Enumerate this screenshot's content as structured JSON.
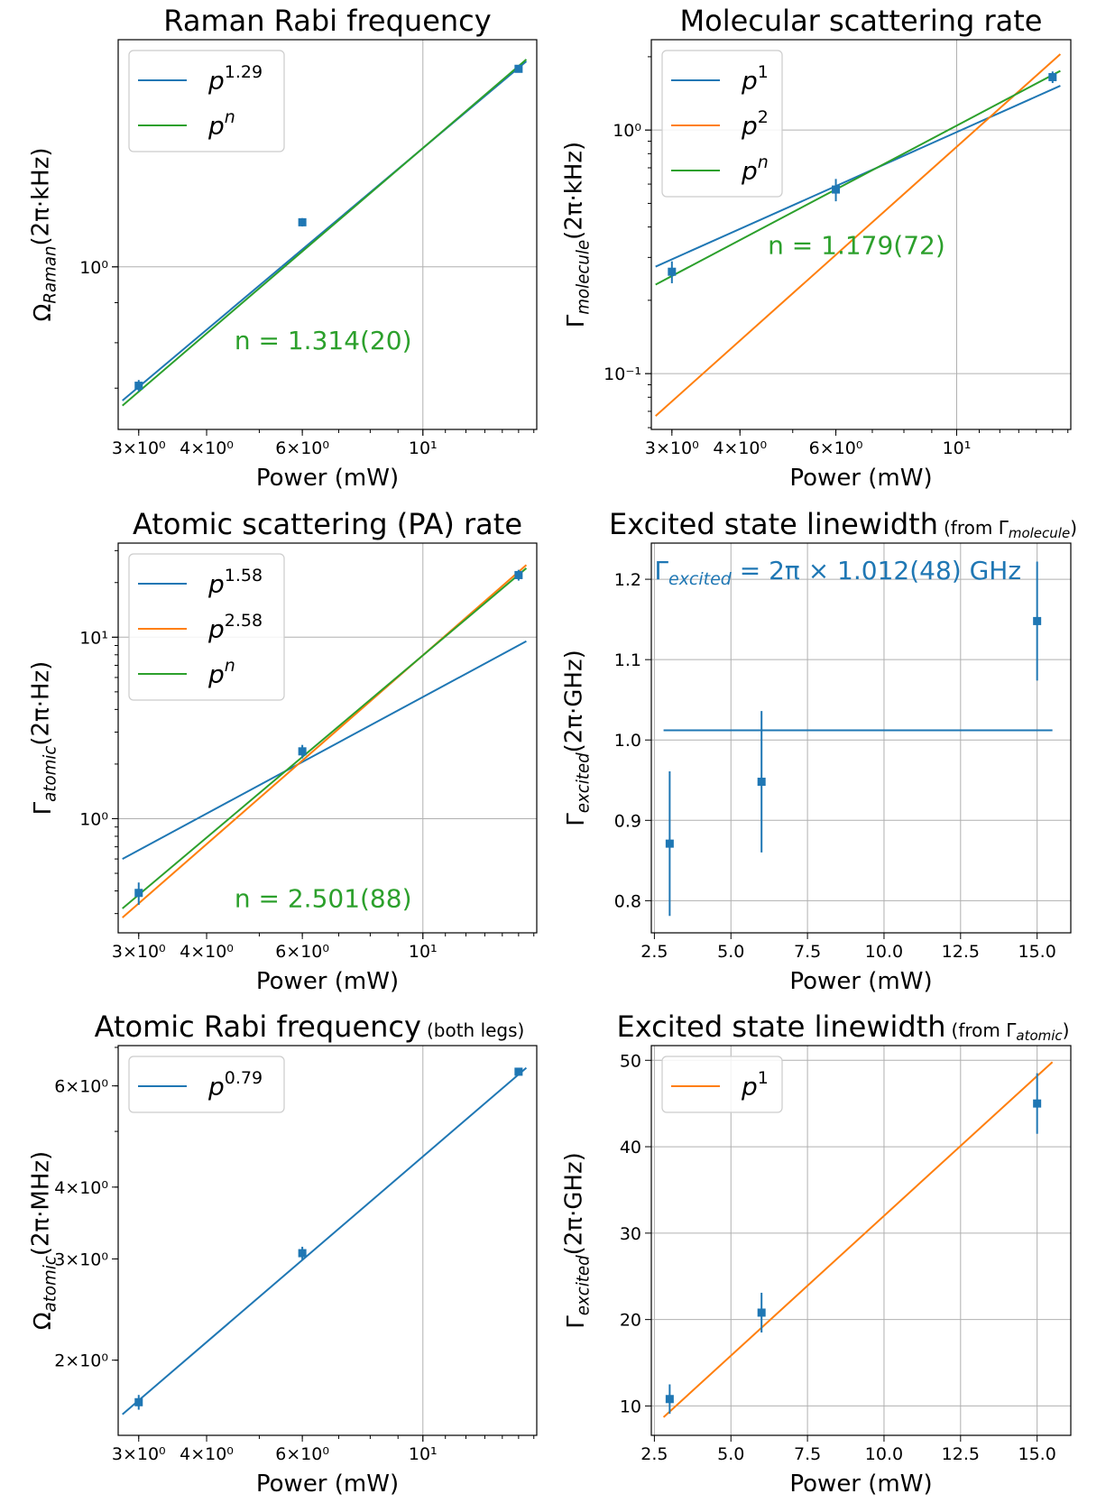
{
  "colors": {
    "blue": "#1f77b4",
    "orange": "#ff7f0e",
    "green": "#2ca02c",
    "grid": "#b0b0b0"
  },
  "chart_data": [
    {
      "id": "raman",
      "type": "scatter",
      "title": "Raman Rabi frequency",
      "title_sub": "",
      "xlabel": "Power (mW)",
      "ylabel": "Ω_Raman(2π·kHz)",
      "xscale": "log",
      "yscale": "log",
      "xlim": [
        2.75,
        16.2
      ],
      "ylim": [
        0.62,
        1.95
      ],
      "xticks": [
        {
          "v": 3,
          "label": "3×10⁰"
        },
        {
          "v": 4,
          "label": "4×10⁰"
        },
        {
          "v": 6,
          "label": "6×10⁰"
        },
        {
          "v": 10,
          "label": "10¹"
        }
      ],
      "yticks": [
        {
          "v": 1,
          "label": "10⁰"
        }
      ],
      "grid": true,
      "points": [
        {
          "x": 3,
          "y": 0.705,
          "yerr": 0.012
        },
        {
          "x": 6,
          "y": 1.14,
          "yerr": 0.014
        },
        {
          "x": 15,
          "y": 1.79,
          "yerr": 0.02
        }
      ],
      "lines": [
        {
          "name": "p^1.29",
          "color": "blue",
          "x": [
            2.8,
            15.5
          ],
          "y": [
            0.675,
            1.83
          ]
        },
        {
          "name": "p^n",
          "color": "green",
          "x": [
            2.8,
            15.5
          ],
          "y": [
            0.665,
            1.84
          ]
        }
      ],
      "legend": [
        {
          "base": "p",
          "sup": "1.29",
          "color": "blue"
        },
        {
          "base": "p",
          "sup": "n",
          "color": "green"
        }
      ],
      "legend_position": "top-left",
      "annotation": {
        "text": "n = 1.314(20)",
        "color": "green",
        "x": 4.5,
        "y": 0.785
      }
    },
    {
      "id": "molecule",
      "type": "scatter",
      "title": "Molecular scattering rate",
      "title_sub": "",
      "xlabel": "Power (mW)",
      "ylabel": "Γ_molecule(2π·kHz)",
      "xscale": "log",
      "yscale": "log",
      "xlim": [
        2.75,
        16.2
      ],
      "ylim": [
        0.059,
        2.35
      ],
      "xticks": [
        {
          "v": 3,
          "label": "3×10⁰"
        },
        {
          "v": 4,
          "label": "4×10⁰"
        },
        {
          "v": 6,
          "label": "6×10⁰"
        },
        {
          "v": 10,
          "label": "10¹"
        }
      ],
      "yticks": [
        {
          "v": 0.1,
          "label": "10⁻¹"
        },
        {
          "v": 1,
          "label": "10⁰"
        }
      ],
      "grid": true,
      "points": [
        {
          "x": 3,
          "y": 0.262,
          "yerr": 0.027
        },
        {
          "x": 6,
          "y": 0.57,
          "yerr": 0.06
        },
        {
          "x": 15,
          "y": 1.65,
          "yerr": 0.09
        }
      ],
      "lines": [
        {
          "name": "p^1",
          "color": "blue",
          "x": [
            2.8,
            15.5
          ],
          "y": [
            0.275,
            1.52
          ]
        },
        {
          "name": "p^2",
          "color": "orange",
          "x": [
            2.8,
            15.5
          ],
          "y": [
            0.067,
            2.05
          ]
        },
        {
          "name": "p^n",
          "color": "green",
          "x": [
            2.8,
            15.5
          ],
          "y": [
            0.232,
            1.75
          ]
        }
      ],
      "legend": [
        {
          "base": "p",
          "sup": "1",
          "color": "blue"
        },
        {
          "base": "p",
          "sup": "2",
          "color": "orange"
        },
        {
          "base": "p",
          "sup": "n",
          "color": "green"
        }
      ],
      "legend_position": "top-left",
      "annotation": {
        "text": "n = 1.179(72)",
        "color": "green",
        "x": 4.5,
        "y": 0.31
      }
    },
    {
      "id": "atomic",
      "type": "scatter",
      "title": "Atomic scattering (PA) rate",
      "title_sub": "",
      "xlabel": "Power (mW)",
      "ylabel": "Γ_atomic(2π·Hz)",
      "xscale": "log",
      "yscale": "log",
      "xlim": [
        2.75,
        16.2
      ],
      "ylim": [
        0.235,
        33
      ],
      "xticks": [
        {
          "v": 3,
          "label": "3×10⁰"
        },
        {
          "v": 4,
          "label": "4×10⁰"
        },
        {
          "v": 6,
          "label": "6×10⁰"
        },
        {
          "v": 10,
          "label": "10¹"
        }
      ],
      "yticks": [
        {
          "v": 1,
          "label": "10⁰"
        },
        {
          "v": 10,
          "label": "10¹"
        }
      ],
      "grid": true,
      "points": [
        {
          "x": 3,
          "y": 0.39,
          "yerr": 0.055
        },
        {
          "x": 6,
          "y": 2.35,
          "yerr": 0.2
        },
        {
          "x": 15,
          "y": 22,
          "yerr": 1.5
        }
      ],
      "lines": [
        {
          "name": "p^1.58",
          "color": "blue",
          "x": [
            2.8,
            15.5
          ],
          "y": [
            0.6,
            9.5
          ]
        },
        {
          "name": "p^2.58",
          "color": "orange",
          "x": [
            2.8,
            15.5
          ],
          "y": [
            0.285,
            25
          ]
        },
        {
          "name": "p^n",
          "color": "green",
          "x": [
            2.8,
            15.5
          ],
          "y": [
            0.32,
            24
          ]
        }
      ],
      "legend": [
        {
          "base": "p",
          "sup": "1.58",
          "color": "blue"
        },
        {
          "base": "p",
          "sup": "2.58",
          "color": "orange"
        },
        {
          "base": "p",
          "sup": "n",
          "color": "green"
        }
      ],
      "legend_position": "top-left",
      "annotation": {
        "text": "n = 2.501(88)",
        "color": "green",
        "x": 4.5,
        "y": 0.325
      }
    },
    {
      "id": "linewidth_molecule",
      "type": "scatter",
      "title": "Excited state linewidth",
      "title_sub": "(from Γ_molecule)",
      "xlabel": "Power (mW)",
      "ylabel": "Γ_excited(2π·GHz)",
      "xscale": "linear",
      "yscale": "linear",
      "xlim": [
        2.4,
        16.1
      ],
      "ylim": [
        0.76,
        1.245
      ],
      "xticks": [
        {
          "v": 2.5,
          "label": "2.5"
        },
        {
          "v": 5,
          "label": "5.0"
        },
        {
          "v": 7.5,
          "label": "7.5"
        },
        {
          "v": 10,
          "label": "10.0"
        },
        {
          "v": 12.5,
          "label": "12.5"
        },
        {
          "v": 15,
          "label": "15.0"
        }
      ],
      "yticks": [
        {
          "v": 0.8,
          "label": "0.8"
        },
        {
          "v": 0.9,
          "label": "0.9"
        },
        {
          "v": 1.0,
          "label": "1.0"
        },
        {
          "v": 1.1,
          "label": "1.1"
        },
        {
          "v": 1.2,
          "label": "1.2"
        }
      ],
      "grid": true,
      "points": [
        {
          "x": 3,
          "y": 0.871,
          "yerr": 0.09
        },
        {
          "x": 6,
          "y": 0.948,
          "yerr": 0.088
        },
        {
          "x": 15,
          "y": 1.148,
          "yerr": 0.074
        }
      ],
      "lines": [
        {
          "name": "",
          "color": "blue",
          "x": [
            2.8,
            15.5
          ],
          "y": [
            1.012,
            1.012
          ]
        }
      ],
      "legend": [],
      "legend_position": "",
      "annotation": {
        "text": "Γexcited = 2π × 1.012(48) GHz",
        "color": "blue",
        "x": 2.5,
        "y": 1.2
      }
    },
    {
      "id": "atomic_rabi",
      "type": "scatter",
      "title": "Atomic Rabi frequency",
      "title_sub": "(both legs)",
      "xlabel": "Power (mW)",
      "ylabel": "Ω_atomic(2π·MHz)",
      "xscale": "log",
      "yscale": "log",
      "xlim": [
        2.75,
        16.2
      ],
      "ylim": [
        1.48,
        7.05
      ],
      "xticks": [
        {
          "v": 3,
          "label": "3×10⁰"
        },
        {
          "v": 4,
          "label": "4×10⁰"
        },
        {
          "v": 6,
          "label": "6×10⁰"
        },
        {
          "v": 10,
          "label": "10¹"
        }
      ],
      "yticks": [
        {
          "v": 2,
          "label": "2×10⁰"
        },
        {
          "v": 3,
          "label": "3×10⁰"
        },
        {
          "v": 4,
          "label": "4×10⁰"
        },
        {
          "v": 6,
          "label": "6×10⁰"
        }
      ],
      "grid": true,
      "points": [
        {
          "x": 3,
          "y": 1.69,
          "yerr": 0.05
        },
        {
          "x": 6,
          "y": 3.07,
          "yerr": 0.08
        },
        {
          "x": 15,
          "y": 6.35,
          "yerr": 0.1
        }
      ],
      "lines": [
        {
          "name": "p^0.79",
          "color": "blue",
          "x": [
            2.8,
            15.5
          ],
          "y": [
            1.61,
            6.45
          ]
        }
      ],
      "legend": [
        {
          "base": "p",
          "sup": "0.79",
          "color": "blue"
        }
      ],
      "legend_position": "top-left",
      "annotation": null
    },
    {
      "id": "linewidth_atomic",
      "type": "scatter",
      "title": "Excited state linewidth",
      "title_sub": "(from Γ_atomic)",
      "xlabel": "Power (mW)",
      "ylabel": "Γ_excited(2π·GHz)",
      "xscale": "linear",
      "yscale": "linear",
      "xlim": [
        2.4,
        16.1
      ],
      "ylim": [
        6.6,
        51.7
      ],
      "xticks": [
        {
          "v": 2.5,
          "label": "2.5"
        },
        {
          "v": 5,
          "label": "5.0"
        },
        {
          "v": 7.5,
          "label": "7.5"
        },
        {
          "v": 10,
          "label": "10.0"
        },
        {
          "v": 12.5,
          "label": "12.5"
        },
        {
          "v": 15,
          "label": "15.0"
        }
      ],
      "yticks": [
        {
          "v": 10,
          "label": "10"
        },
        {
          "v": 20,
          "label": "20"
        },
        {
          "v": 30,
          "label": "30"
        },
        {
          "v": 40,
          "label": "40"
        },
        {
          "v": 50,
          "label": "50"
        }
      ],
      "grid": true,
      "points": [
        {
          "x": 3,
          "y": 10.8,
          "yerr": 1.7
        },
        {
          "x": 6,
          "y": 20.8,
          "yerr": 2.3
        },
        {
          "x": 15,
          "y": 45,
          "yerr": 3.5
        }
      ],
      "lines": [
        {
          "name": "p^1",
          "color": "orange",
          "x": [
            2.8,
            15.5
          ],
          "y": [
            8.7,
            49.8
          ]
        }
      ],
      "legend": [
        {
          "base": "p",
          "sup": "1",
          "color": "orange"
        }
      ],
      "legend_position": "top-left",
      "annotation": null
    }
  ]
}
